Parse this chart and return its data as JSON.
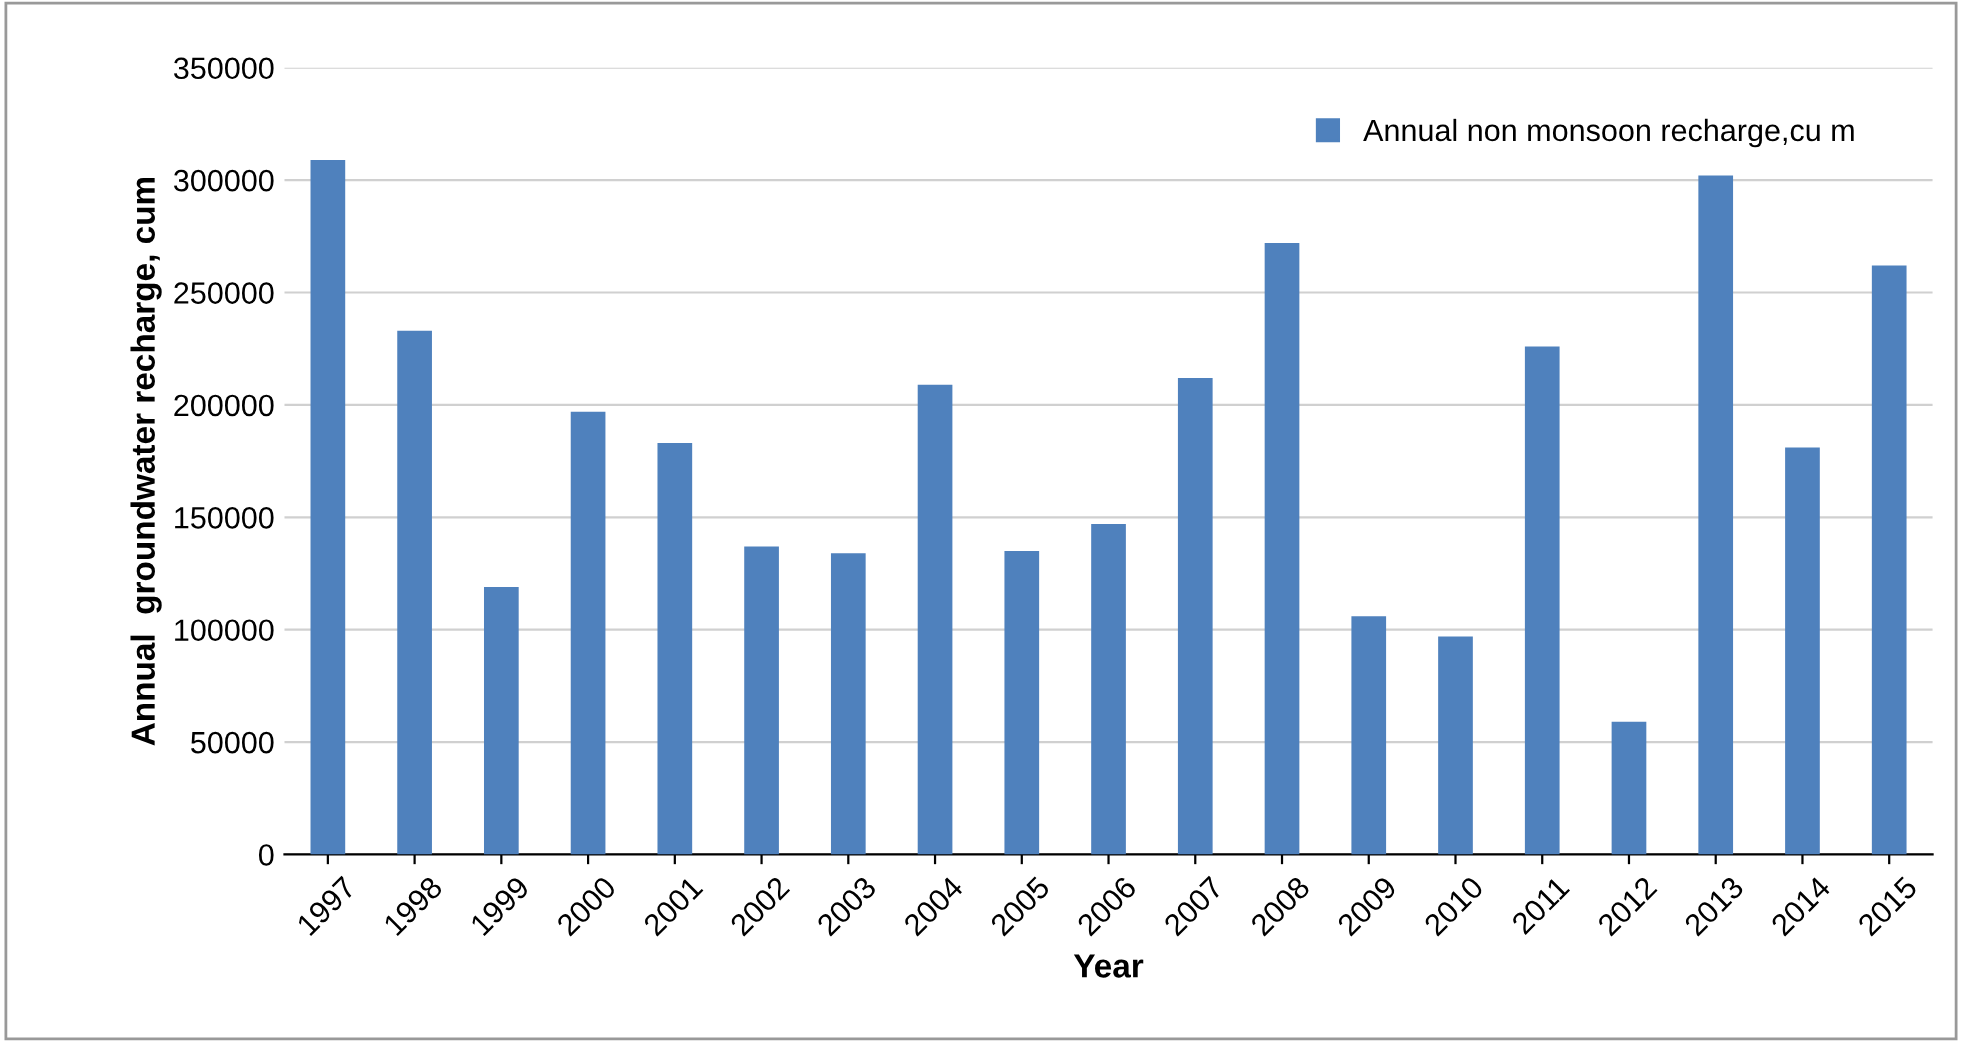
{
  "chart_data": {
    "type": "bar",
    "xlabel": "Year",
    "ylabel": "Annual  groundwater recharge, cum",
    "categories": [
      "1997",
      "1998",
      "1999",
      "2000",
      "2001",
      "2002",
      "2003",
      "2004",
      "2005",
      "2006",
      "2007",
      "2008",
      "2009",
      "2010",
      "2011",
      "2012",
      "2013",
      "2014",
      "2015"
    ],
    "series": [
      {
        "name": "Annual non monsoon recharge,cu m",
        "color": "#4f81bd",
        "values": [
          309000,
          233000,
          119000,
          197000,
          183000,
          137000,
          134000,
          209000,
          135000,
          147000,
          212000,
          272000,
          106000,
          97000,
          226000,
          59000,
          302000,
          181000,
          262000
        ]
      }
    ],
    "ylim": [
      0,
      350000
    ],
    "yticks": [
      0,
      50000,
      100000,
      150000,
      200000,
      250000,
      300000,
      350000
    ],
    "grid": "y",
    "legend": "top right"
  }
}
